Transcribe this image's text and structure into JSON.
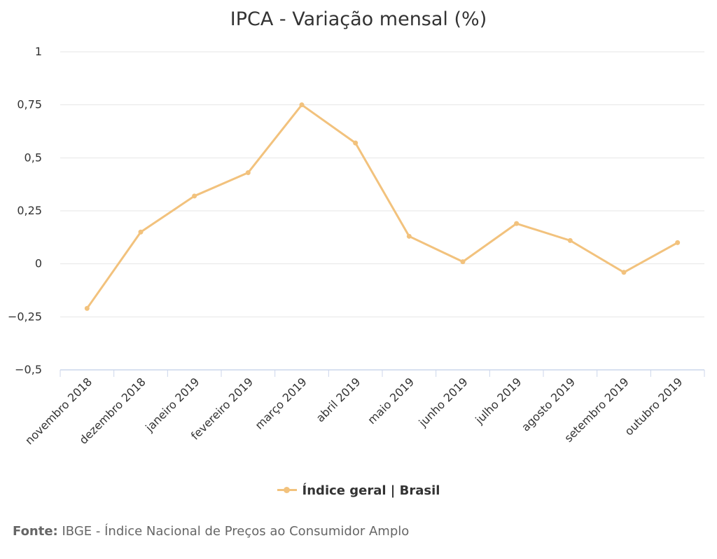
{
  "chart_data": {
    "type": "line",
    "title": "IPCA - Variação mensal (%)",
    "categories": [
      "novembro 2018",
      "dezembro 2018",
      "janeiro 2019",
      "fevereiro 2019",
      "março 2019",
      "abril 2019",
      "maio 2019",
      "junho 2019",
      "julho 2019",
      "agosto 2019",
      "setembro 2019",
      "outubro 2019"
    ],
    "series": [
      {
        "name": "Índice geral | Brasil",
        "color": "#f2c27d",
        "values": [
          -0.21,
          0.15,
          0.32,
          0.43,
          0.75,
          0.57,
          0.13,
          0.01,
          0.19,
          0.11,
          -0.04,
          0.1
        ]
      }
    ],
    "ylim": [
      -0.5,
      1
    ],
    "yticks": [
      -0.5,
      -0.25,
      0,
      0.25,
      0.5,
      0.75,
      1
    ],
    "ytick_labels": [
      "−0,5",
      "−0,25",
      "0",
      "0,25",
      "0,5",
      "0,75",
      "1"
    ],
    "grid": true,
    "legend": "bottom-center"
  },
  "source": {
    "label": "Fonte:",
    "text": "IBGE - Índice Nacional de Preços ao Consumidor Amplo"
  }
}
